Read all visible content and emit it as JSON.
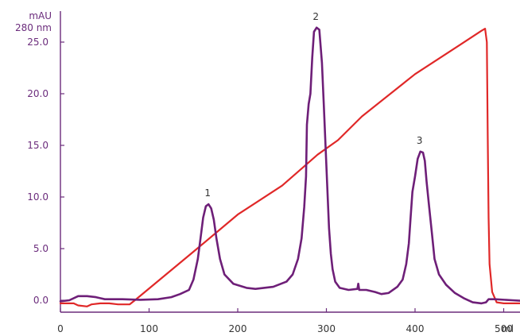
{
  "chart_data": {
    "type": "line",
    "y_unit_line1": "mAU",
    "y_unit_line2": "280 nm",
    "x_unit": "ml",
    "xlim": [
      0,
      530
    ],
    "ylim": [
      -0.3,
      26.7
    ],
    "x_ticks": [
      0,
      100,
      200,
      300,
      400,
      500
    ],
    "x_tick_labels": [
      "0",
      "100",
      "200",
      "300",
      "400",
      "500"
    ],
    "y_ticks": [
      0,
      5,
      10,
      15,
      20,
      25
    ],
    "y_tick_labels": [
      "0.0",
      "5.0",
      "10.0",
      "15.0",
      "20.0",
      "25.0"
    ],
    "grid": false,
    "colors": {
      "axis": "#6b2c7c",
      "absorbance": "#6e1f78",
      "gradient": "#e02828",
      "text": "#333333"
    },
    "series": [
      {
        "key": "absorbance",
        "points": [
          [
            0,
            -0.1
          ],
          [
            10,
            0
          ],
          [
            20,
            0.4
          ],
          [
            30,
            0.4
          ],
          [
            40,
            0.3
          ],
          [
            50,
            0.1
          ],
          [
            70,
            0.1
          ],
          [
            90,
            0.05
          ],
          [
            110,
            0.1
          ],
          [
            125,
            0.3
          ],
          [
            135,
            0.6
          ],
          [
            145,
            1.0
          ],
          [
            150,
            2.0
          ],
          [
            155,
            4.0
          ],
          [
            158,
            6.0
          ],
          [
            161,
            8.0
          ],
          [
            164,
            9.1
          ],
          [
            167,
            9.3
          ],
          [
            170,
            8.9
          ],
          [
            173,
            7.8
          ],
          [
            176,
            6.0
          ],
          [
            180,
            4.0
          ],
          [
            185,
            2.5
          ],
          [
            195,
            1.6
          ],
          [
            210,
            1.2
          ],
          [
            220,
            1.1
          ],
          [
            240,
            1.3
          ],
          [
            255,
            1.8
          ],
          [
            262,
            2.5
          ],
          [
            268,
            4.0
          ],
          [
            272,
            6.0
          ],
          [
            275,
            9.0
          ],
          [
            277,
            12.0
          ],
          [
            278,
            17.0
          ],
          [
            280,
            19.0
          ],
          [
            282,
            20.0
          ],
          [
            284,
            23.5
          ],
          [
            286,
            26.0
          ],
          [
            289,
            26.4
          ],
          [
            292,
            26.2
          ],
          [
            295,
            23.0
          ],
          [
            297,
            19.0
          ],
          [
            299,
            15.0
          ],
          [
            301,
            11.0
          ],
          [
            303,
            7.0
          ],
          [
            305,
            4.5
          ],
          [
            307,
            3.0
          ],
          [
            310,
            1.8
          ],
          [
            315,
            1.2
          ],
          [
            325,
            1.0
          ],
          [
            335,
            1.1
          ],
          [
            336,
            1.6
          ],
          [
            337,
            1.0
          ],
          [
            345,
            1.0
          ],
          [
            355,
            0.8
          ],
          [
            362,
            0.6
          ],
          [
            370,
            0.7
          ],
          [
            380,
            1.3
          ],
          [
            386,
            2.0
          ],
          [
            390,
            3.5
          ],
          [
            393,
            5.5
          ],
          [
            395,
            8.0
          ],
          [
            397,
            10.5
          ],
          [
            400,
            12.0
          ],
          [
            403,
            13.7
          ],
          [
            406,
            14.4
          ],
          [
            409,
            14.3
          ],
          [
            411,
            13.5
          ],
          [
            413,
            11.5
          ],
          [
            416,
            9.0
          ],
          [
            419,
            6.5
          ],
          [
            422,
            4.0
          ],
          [
            427,
            2.5
          ],
          [
            435,
            1.5
          ],
          [
            445,
            0.7
          ],
          [
            455,
            0.2
          ],
          [
            465,
            -0.2
          ],
          [
            475,
            -0.3
          ],
          [
            480,
            -0.2
          ],
          [
            483,
            0.1
          ],
          [
            490,
            0.1
          ],
          [
            510,
            0.0
          ],
          [
            530,
            -0.1
          ]
        ]
      },
      {
        "key": "gradient",
        "points": [
          [
            0,
            -0.3
          ],
          [
            15,
            -0.3
          ],
          [
            20,
            -0.5
          ],
          [
            30,
            -0.6
          ],
          [
            35,
            -0.4
          ],
          [
            45,
            -0.3
          ],
          [
            55,
            -0.3
          ],
          [
            65,
            -0.4
          ],
          [
            78,
            -0.4
          ],
          [
            84,
            0.0
          ],
          [
            150,
            4.7
          ],
          [
            200,
            8.3
          ],
          [
            250,
            11.1
          ],
          [
            290,
            14.1
          ],
          [
            313,
            15.5
          ],
          [
            340,
            17.8
          ],
          [
            400,
            21.9
          ],
          [
            450,
            24.7
          ],
          [
            475,
            26.1
          ],
          [
            479,
            26.3
          ],
          [
            481,
            25.0
          ],
          [
            482,
            16.0
          ],
          [
            483,
            8.0
          ],
          [
            484,
            3.5
          ],
          [
            487,
            0.8
          ],
          [
            492,
            -0.2
          ],
          [
            500,
            -0.3
          ],
          [
            530,
            -0.3
          ]
        ]
      }
    ],
    "annotations": [
      {
        "label": "1",
        "x": 167,
        "y": 9.3
      },
      {
        "label": "2",
        "x": 289,
        "y": 26.4
      },
      {
        "label": "3",
        "x": 406,
        "y": 14.4
      }
    ]
  }
}
